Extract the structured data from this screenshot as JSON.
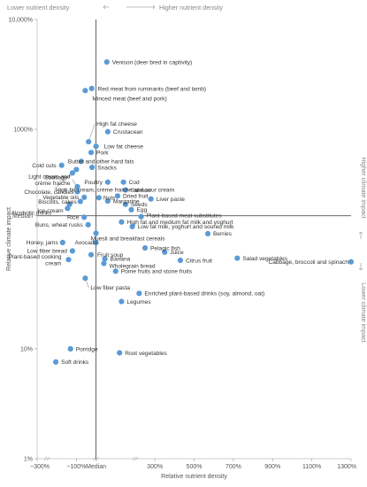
{
  "chart_data": {
    "type": "scatter",
    "xlabel": "Relative nutrient density",
    "ylabel": "Relative climate impact",
    "x_ticks": [
      "−300%",
      "−100%",
      "Median",
      "300%",
      "500%",
      "700%",
      "900%",
      "1100%",
      "1300%"
    ],
    "x_tick_values": [
      -300,
      -100,
      0,
      300,
      500,
      700,
      900,
      1100,
      1300
    ],
    "xlim": [
      -300,
      1300
    ],
    "x_gaps": [
      [
        -300,
        -200
      ],
      [
        -100,
        0,
        100
      ],
      [
        100,
        300
      ]
    ],
    "y_scale": "log",
    "y_ticks": [
      "10,000%",
      "1000%",
      "Median",
      "10%",
      "1%"
    ],
    "y_tick_values": [
      10000,
      1000,
      163,
      10,
      1
    ],
    "ylim": [
      1,
      10000
    ],
    "median_y": 163,
    "annotations": {
      "top_left": "Lower nutrient density",
      "top_right": "Higher nutrient density",
      "right_top": "Higher climate impact",
      "right_bottom": "Lower climate impact"
    },
    "points": [
      {
        "name": "Venison (deer bred in captivity)",
        "x": 55,
        "y": 4100
      },
      {
        "name": "Red meat from ruminants (beef and lamb)",
        "x": -22,
        "y": 2350
      },
      {
        "name": "Minced meat (beef and pork)",
        "x": -55,
        "y": 2250
      },
      {
        "name": "High fat cheese",
        "x": -38,
        "y": 770
      },
      {
        "name": "Crustacean",
        "x": 60,
        "y": 950
      },
      {
        "name": "Low fat cheese",
        "x": 0,
        "y": 700
      },
      {
        "name": "Pork",
        "x": -25,
        "y": 615
      },
      {
        "name": "Butter and other hard fats",
        "x": -75,
        "y": 510
      },
      {
        "name": "Snacks",
        "x": -20,
        "y": 450
      },
      {
        "name": "Cold cuts",
        "x": -175,
        "y": 470
      },
      {
        "name": "Sausage",
        "x": -100,
        "y": 430
      },
      {
        "name": "High fat cream, crème fraiche and sour cream",
        "x": -120,
        "y": 400
      },
      {
        "name": "Cod",
        "x": 140,
        "y": 330
      },
      {
        "name": "Poultry",
        "x": 60,
        "y": 330
      },
      {
        "name": "Light cream and crème fraiche",
        "x": -95,
        "y": 300
      },
      {
        "name": "Salmon",
        "x": 150,
        "y": 280
      },
      {
        "name": "Chocolate, candies",
        "x": -95,
        "y": 270
      },
      {
        "name": "Vegetable oils",
        "x": -60,
        "y": 240
      },
      {
        "name": "Nuts",
        "x": 15,
        "y": 238
      },
      {
        "name": "Dried fruit",
        "x": 110,
        "y": 247
      },
      {
        "name": "Liver paste",
        "x": 280,
        "y": 232
      },
      {
        "name": "Biscuits, cakes",
        "x": -80,
        "y": 220
      },
      {
        "name": "Margarine",
        "x": 60,
        "y": 222
      },
      {
        "name": "Seeds",
        "x": 150,
        "y": 207
      },
      {
        "name": "Ice-cream",
        "x": -135,
        "y": 207
      },
      {
        "name": "Egg",
        "x": 180,
        "y": 185
      },
      {
        "name": "Alcoholic drinks",
        "x": -145,
        "y": 190
      },
      {
        "name": "Plant-based meat substitutes",
        "x": 230,
        "y": 160
      },
      {
        "name": "Rice",
        "x": -60,
        "y": 158
      },
      {
        "name": "High fat and medium fat milk and yoghurt",
        "x": 130,
        "y": 143
      },
      {
        "name": "Buns, wheat rusks",
        "x": -40,
        "y": 135
      },
      {
        "name": "Low fat milk, yoghurt and soured milk",
        "x": 185,
        "y": 130
      },
      {
        "name": "Muesli and breakfast cereals",
        "x": 0,
        "y": 113
      },
      {
        "name": "Berries",
        "x": 570,
        "y": 112
      },
      {
        "name": "Honey, jams",
        "x": -170,
        "y": 93
      },
      {
        "name": "Avocado",
        "x": 0,
        "y": 93
      },
      {
        "name": "Pelagic fish",
        "x": 250,
        "y": 83
      },
      {
        "name": "Low fiber bread",
        "x": -120,
        "y": 78
      },
      {
        "name": "Juice",
        "x": 350,
        "y": 76
      },
      {
        "name": "Fruit soup",
        "x": -25,
        "y": 72
      },
      {
        "name": "Salad vegetables",
        "x": 720,
        "y": 67
      },
      {
        "name": "Cabbage, broccoli and spinach",
        "x": 1300,
        "y": 62
      },
      {
        "name": "Plant-based cooking cream",
        "x": -140,
        "y": 65
      },
      {
        "name": "Banana",
        "x": 45,
        "y": 66
      },
      {
        "name": "Citrus fruit",
        "x": 430,
        "y": 64
      },
      {
        "name": "Wholegrain bread",
        "x": 40,
        "y": 60
      },
      {
        "name": "Pome fruits and stone fruits",
        "x": 100,
        "y": 51
      },
      {
        "name": "Low fiber pasta",
        "x": -55,
        "y": 44
      },
      {
        "name": "Enriched plant-based drinks (soy, almond, oat)",
        "x": 220,
        "y": 32
      },
      {
        "name": "Legumes",
        "x": 130,
        "y": 27
      },
      {
        "name": "Porridge",
        "x": -130,
        "y": 10
      },
      {
        "name": "Root vegetables",
        "x": 120,
        "y": 9.2
      },
      {
        "name": "Soft drinks",
        "x": -205,
        "y": 7.6
      }
    ]
  }
}
